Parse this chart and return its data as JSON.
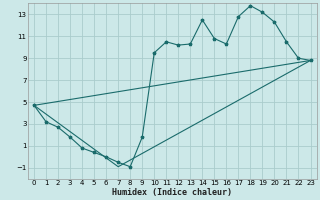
{
  "xlabel": "Humidex (Indice chaleur)",
  "bg_color": "#cce8e8",
  "grid_color": "#aacccc",
  "line_color": "#1a6b6b",
  "xlim": [
    -0.5,
    23.5
  ],
  "ylim": [
    -2,
    14
  ],
  "xticks": [
    0,
    1,
    2,
    3,
    4,
    5,
    6,
    7,
    8,
    9,
    10,
    11,
    12,
    13,
    14,
    15,
    16,
    17,
    18,
    19,
    20,
    21,
    22,
    23
  ],
  "yticks": [
    -1,
    1,
    3,
    5,
    7,
    9,
    11,
    13
  ],
  "series1_x": [
    0,
    1,
    2,
    3,
    4,
    5,
    6,
    7,
    8,
    9,
    10,
    11,
    12,
    13,
    14,
    15,
    16,
    17,
    18,
    19,
    20,
    21,
    22,
    23
  ],
  "series1_y": [
    4.7,
    3.2,
    2.7,
    1.8,
    0.8,
    0.4,
    0.0,
    -0.5,
    -0.9,
    1.8,
    9.5,
    10.5,
    10.2,
    10.3,
    12.5,
    10.8,
    10.3,
    12.8,
    13.8,
    13.2,
    12.3,
    10.5,
    9.0,
    8.8
  ],
  "line2_x": [
    0,
    23
  ],
  "line2_y": [
    4.7,
    8.8
  ],
  "line3_x": [
    0,
    7,
    23
  ],
  "line3_y": [
    4.7,
    -0.9,
    8.8
  ],
  "xlabel_fontsize": 6.0,
  "tick_fontsize": 5.0
}
